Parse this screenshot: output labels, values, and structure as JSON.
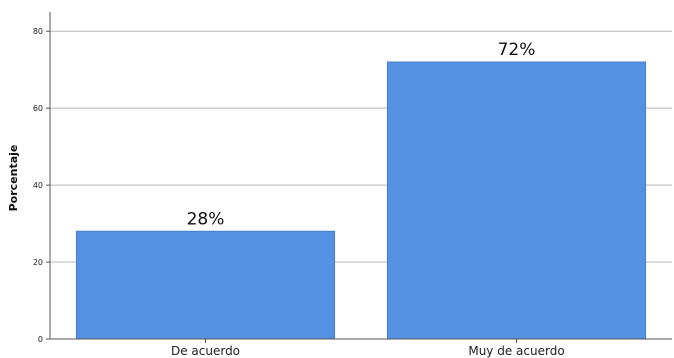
{
  "chart_data": {
    "type": "bar",
    "categories": [
      "De acuerdo",
      "Muy de acuerdo"
    ],
    "values": [
      28,
      72
    ],
    "data_labels": [
      "28%",
      "72%"
    ],
    "ylabel": "Porcentaje",
    "xlabel": "",
    "ylim": [
      0,
      85
    ],
    "yticks": [
      0,
      20,
      40,
      60,
      80
    ],
    "ytick_labels": [
      "0",
      "20",
      "40",
      "60",
      "80"
    ],
    "grid": "horizontal",
    "bar_color": "#5591e2",
    "bar_edge_color": "#4a7fc8",
    "grid_color": "#b8b8b8",
    "axis_color": "#555555"
  }
}
